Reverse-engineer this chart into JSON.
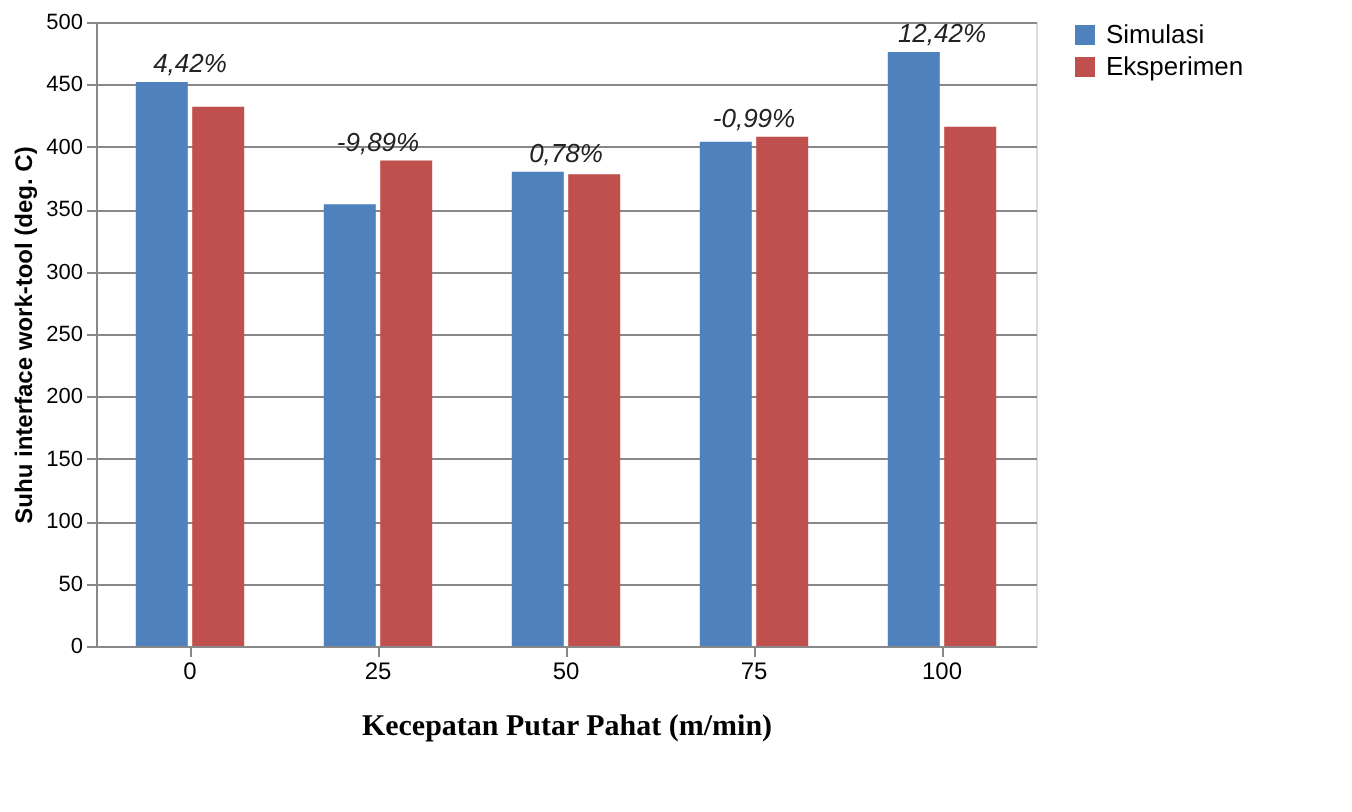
{
  "chart_data": {
    "type": "bar",
    "xlabel": "Kecepatan Putar Pahat  (m/min)",
    "ylabel": "Suhu interface work-tool  (deg. C)",
    "categories": [
      "0",
      "25",
      "50",
      "75",
      "100"
    ],
    "series": [
      {
        "name": "Simulasi",
        "color": "#4f81bd",
        "values": [
          452,
          354,
          380,
          404,
          476
        ]
      },
      {
        "name": "Eksperimen",
        "color": "#c0504d",
        "values": [
          432,
          389,
          378,
          408,
          416
        ]
      }
    ],
    "ylim": [
      0,
      500
    ],
    "yticks": [
      0,
      50,
      100,
      150,
      200,
      250,
      300,
      350,
      400,
      450,
      500
    ],
    "grid": "y",
    "legend": "right",
    "annotations": [
      {
        "text": "4,42%",
        "x": "0",
        "y": 452
      },
      {
        "text": "-9,89%",
        "x": "25",
        "y": 389
      },
      {
        "text": "0,78%",
        "x": "50",
        "y": 380
      },
      {
        "text": "-0,99%",
        "x": "75",
        "y": 408
      },
      {
        "text": "12,42%",
        "x": "100",
        "y": 476
      }
    ]
  }
}
